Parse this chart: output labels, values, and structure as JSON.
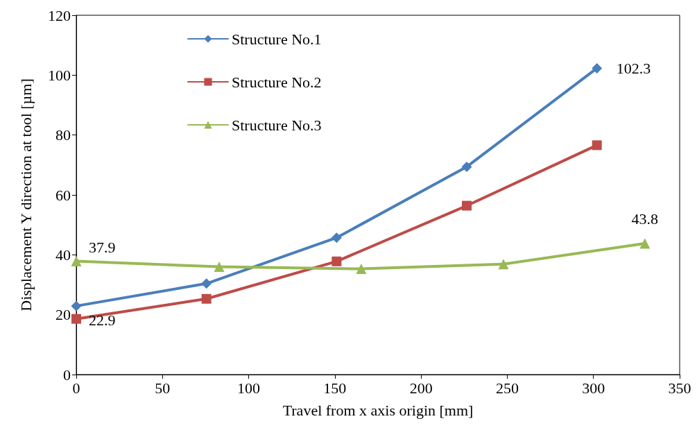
{
  "chart_data": {
    "type": "line",
    "xlabel": "Travel from x axis origin [mm]",
    "ylabel": "Displacement Y direction at tool [µm]",
    "series": [
      {
        "name": "Structure No.1",
        "color": "#4a7ebb",
        "marker": "diamond",
        "x": [
          0,
          75.5,
          151,
          226.5,
          302
        ],
        "values": [
          22.9,
          30.4,
          45.7,
          69.4,
          102.3
        ]
      },
      {
        "name": "Structure No.2",
        "color": "#be4b48",
        "marker": "square",
        "x": [
          0,
          75.5,
          151,
          226.5,
          302
        ],
        "values": [
          18.6,
          25.3,
          37.8,
          56.4,
          76.6
        ]
      },
      {
        "name": "Structure No.3",
        "color": "#98b954",
        "marker": "triangle",
        "x": [
          0,
          82.9,
          165.3,
          247.8,
          329.8
        ],
        "values": [
          37.9,
          36.0,
          35.3,
          36.9,
          43.8
        ]
      }
    ],
    "xlim": [
      0,
      350
    ],
    "xticks": [
      0,
      50,
      100,
      150,
      200,
      250,
      300,
      350
    ],
    "ylim": [
      0,
      120
    ],
    "yticks": [
      0,
      20,
      40,
      60,
      80,
      100,
      120
    ],
    "grid": false,
    "legend": "top left",
    "line_style": "solid",
    "annotations": [
      {
        "text": "102.3",
        "x": 302,
        "y": 102.3
      },
      {
        "text": "37.9",
        "x": 0,
        "y": 37.9
      },
      {
        "text": "22.9",
        "x": 0,
        "y": 22.9
      },
      {
        "text": "43.8",
        "x": 329.8,
        "y": 43.8
      }
    ]
  }
}
